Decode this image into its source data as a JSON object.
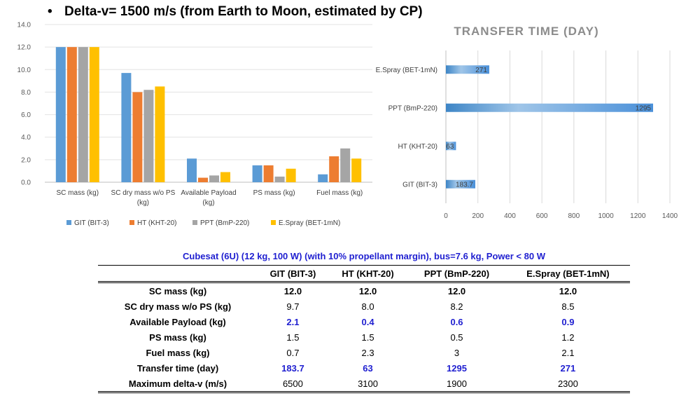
{
  "slide": {
    "bullet": "•",
    "title": "Delta-v= 1500 m/s (from Earth to Moon, estimated by CP)"
  },
  "chart_data": [
    {
      "type": "bar",
      "title": "",
      "categories": [
        "SC mass (kg)",
        "SC dry mass w/o PS (kg)",
        "Available Payload (kg)",
        "PS mass (kg)",
        "Fuel mass (kg)"
      ],
      "series": [
        {
          "name": "GIT (BIT-3)",
          "color": "#5b9bd5",
          "values": [
            12.0,
            9.7,
            2.1,
            1.5,
            0.7
          ]
        },
        {
          "name": "HT (KHT-20)",
          "color": "#ed7d31",
          "values": [
            12.0,
            8.0,
            0.4,
            1.5,
            2.3
          ]
        },
        {
          "name": "PPT (BmP-220)",
          "color": "#a5a5a5",
          "values": [
            12.0,
            8.2,
            0.6,
            0.5,
            3.0
          ]
        },
        {
          "name": "E.Spray (BET-1mN)",
          "color": "#ffc000",
          "values": [
            12.0,
            8.5,
            0.9,
            1.2,
            2.1
          ]
        }
      ],
      "y_ticks": [
        "0.0",
        "2.0",
        "4.0",
        "6.0",
        "8.0",
        "10.0",
        "12.0",
        "14.0"
      ],
      "ylim": [
        0,
        14
      ],
      "grid": true,
      "legend_position": "bottom"
    },
    {
      "type": "bar",
      "orientation": "horizontal",
      "title": "TRANSFER TIME (DAY)",
      "categories": [
        "GIT (BIT-3)",
        "HT (KHT-20)",
        "PPT (BmP-220)",
        "E.Spray (BET-1mN)"
      ],
      "values": [
        183.7,
        63,
        1295,
        271
      ],
      "data_labels": [
        "183.7",
        "63",
        "1295",
        "271"
      ],
      "x_ticks": [
        "0",
        "200",
        "400",
        "600",
        "800",
        "1000",
        "1200",
        "1400"
      ],
      "xlim": [
        0,
        1400
      ],
      "grid": true,
      "color": "#5b9bd5"
    }
  ],
  "table": {
    "caption": "Cubesat (6U) (12 kg, 100 W) (with 10%  propellant margin), bus=7.6 kg, Power < 80 W",
    "headers": [
      "GIT (BIT-3)",
      "HT (KHT-20)",
      "PPT (BmP-220)",
      "E.Spray (BET-1mN)"
    ],
    "rows": [
      {
        "label": "SC mass  (kg)",
        "style": "bold",
        "cells": [
          "12.0",
          "12.0",
          "12.0",
          "12.0"
        ]
      },
      {
        "label": "SC dry mass  w/o PS (kg)",
        "style": "plain",
        "cells": [
          "9.7",
          "8.0",
          "8.2",
          "8.5"
        ]
      },
      {
        "label": "Available Payload  (kg)",
        "style": "blue",
        "cells": [
          "2.1",
          "0.4",
          "0.6",
          "0.9"
        ]
      },
      {
        "label": "PS mass  (kg)",
        "style": "plain",
        "cells": [
          "1.5",
          "1.5",
          "0.5",
          "1.2"
        ]
      },
      {
        "label": "Fuel mass  (kg)",
        "style": "plain",
        "cells": [
          "0.7",
          "2.3",
          "3",
          "2.1"
        ]
      },
      {
        "label": "Transfer time (day)",
        "style": "blue",
        "cells": [
          "183.7",
          "63",
          "1295",
          "271"
        ]
      },
      {
        "label": "Maximum  delta-v (m/s)",
        "style": "plain",
        "cells": [
          "6500",
          "3100",
          "1900",
          "2300"
        ]
      }
    ]
  }
}
